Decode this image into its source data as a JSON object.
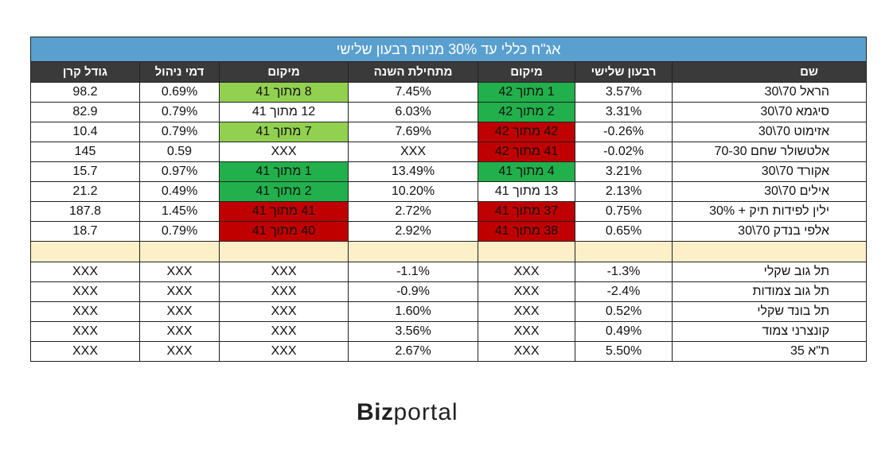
{
  "title": "אג\"ח כללי עד 30% מניות רבעון שלישי",
  "headers": {
    "fund_size": "גודל קרן",
    "mgmt_fee": "דמי ניהול",
    "rank_ytd": "מיקום",
    "ytd": "מתחילת השנה",
    "rank_q3": "מיקום",
    "q3": "רבעון שלישי",
    "name": "שם"
  },
  "colors": {
    "title_bg": "#5aa0cf",
    "header_bg": "#3a3a3a",
    "light_green": "#92d050",
    "dark_green": "#21b04b",
    "red": "#c00000",
    "separator": "#fdefc8"
  },
  "rows": [
    {
      "name": "הראל 70\\30",
      "q3": "3.57%",
      "rank_q3": "1 מתוך 42",
      "rank_q3_color": "dark_green",
      "ytd": "7.45%",
      "rank_ytd": "8 מתוך 41",
      "rank_ytd_color": "light_green",
      "fee": "0.69%",
      "size": "98.2"
    },
    {
      "name": "סיגמא 70\\30",
      "q3": "3.31%",
      "rank_q3": "2 מתוך 42",
      "rank_q3_color": "dark_green",
      "ytd": "6.03%",
      "rank_ytd": "12 מתוך 41",
      "rank_ytd_color": "",
      "fee": "0.79%",
      "size": "82.9"
    },
    {
      "name": "אזימוט 70\\30",
      "q3": "-0.26%",
      "rank_q3": "42 מתוך 42",
      "rank_q3_color": "red",
      "ytd": "7.69%",
      "rank_ytd": "7 מתוך 41",
      "rank_ytd_color": "light_green",
      "fee": "0.79%",
      "size": "10.4"
    },
    {
      "name": "אלטשולר שחם 70-30",
      "q3": "-0.02%",
      "rank_q3": "41 מתוך 42",
      "rank_q3_color": "red",
      "ytd": "XXX",
      "rank_ytd": "XXX",
      "rank_ytd_color": "",
      "fee": "0.59",
      "size": "145"
    },
    {
      "name": "אקורד 70\\30",
      "q3": "3.21%",
      "rank_q3": "4 מתוך 41",
      "rank_q3_color": "dark_green",
      "ytd": "13.49%",
      "rank_ytd": "1 מתוך 41",
      "rank_ytd_color": "dark_green",
      "fee": "0.97%",
      "size": "15.7"
    },
    {
      "name": "אילים 70\\30",
      "q3": "2.13%",
      "rank_q3": "13 מתוך 41",
      "rank_q3_color": "",
      "ytd": "10.20%",
      "rank_ytd": "2 מתוך 41",
      "rank_ytd_color": "dark_green",
      "fee": "0.49%",
      "size": "21.2"
    },
    {
      "name": "ילין לפידות תיק + 30%",
      "q3": "0.75%",
      "rank_q3": "37 מתוך 41",
      "rank_q3_color": "red",
      "ytd": "2.72%",
      "rank_ytd": "41 מתוך 41",
      "rank_ytd_color": "red",
      "fee": "1.45%",
      "size": "187.8"
    },
    {
      "name": "אלפי בנדק 70\\30",
      "q3": "0.65%",
      "rank_q3": "38 מתוך 41",
      "rank_q3_color": "red",
      "ytd": "2.92%",
      "rank_ytd": "40 מתוך 41",
      "rank_ytd_color": "red",
      "fee": "0.79%",
      "size": "18.7"
    }
  ],
  "bench_rows": [
    {
      "name": "תל גוב שקלי",
      "q3": "-1.3%",
      "rank_q3": "XXX",
      "ytd": "-1.1%",
      "rank_ytd": "XXX",
      "fee": "XXX",
      "size": "XXX"
    },
    {
      "name": "תל גוב צמודות",
      "q3": "-2.4%",
      "rank_q3": "XXX",
      "ytd": "-0.9%",
      "rank_ytd": "XXX",
      "fee": "XXX",
      "size": "XXX"
    },
    {
      "name": "תל בונד שקלי",
      "q3": "0.52%",
      "rank_q3": "XXX",
      "ytd": "1.60%",
      "rank_ytd": "XXX",
      "fee": "XXX",
      "size": "XXX"
    },
    {
      "name": "קונצרני צמוד",
      "q3": "0.49%",
      "rank_q3": "XXX",
      "ytd": "3.56%",
      "rank_ytd": "XXX",
      "fee": "XXX",
      "size": "XXX"
    },
    {
      "name": "ת\"א 35",
      "q3": "5.50%",
      "rank_q3": "XXX",
      "ytd": "2.67%",
      "rank_ytd": "XXX",
      "fee": "XXX",
      "size": "XXX"
    }
  ],
  "logo": {
    "part1": "Biz",
    "part2": "portal"
  }
}
